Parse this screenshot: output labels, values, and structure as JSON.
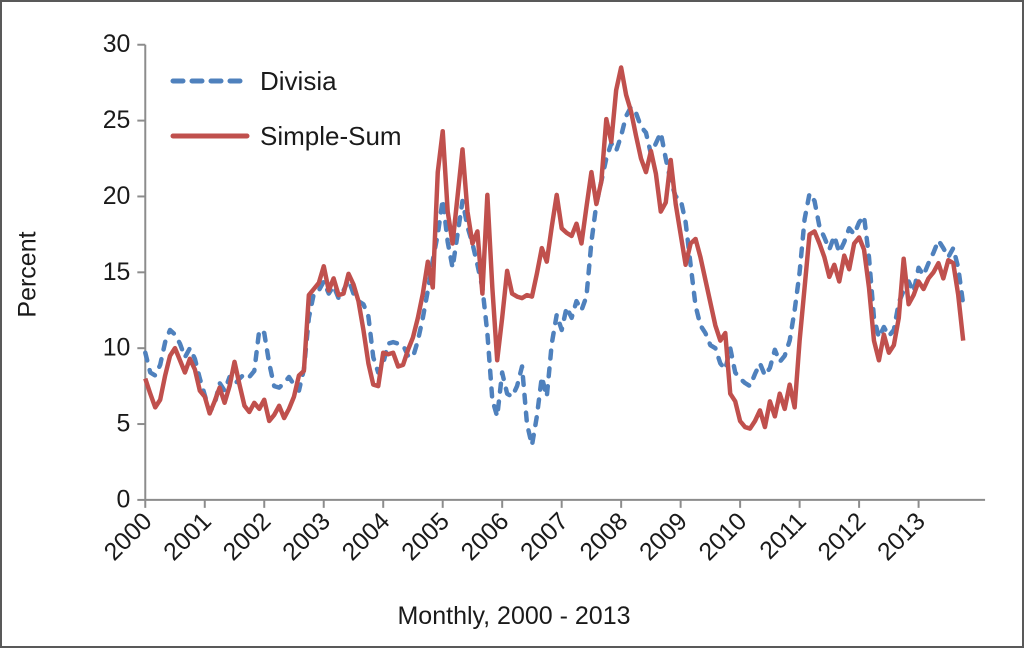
{
  "figure": {
    "background": "#FFFFFF",
    "border_color": "#595959"
  },
  "legend": {
    "position": "top-left-inside",
    "items": [
      {
        "label": "Divisia",
        "color": "#4F81BD",
        "line_style": "dashed"
      },
      {
        "label": "Simple-Sum",
        "color": "#C0504D",
        "line_style": "solid"
      }
    ]
  },
  "chart_data": {
    "type": "line",
    "title": "",
    "xlabel": "Monthly, 2000 - 2013",
    "ylabel": "Percent",
    "x_frequency": "monthly",
    "x_start": "2000-01",
    "x_end": "2013-10",
    "x_tick_labels": [
      "2000",
      "2001",
      "2002",
      "2003",
      "2004",
      "2005",
      "2006",
      "2007",
      "2008",
      "2009",
      "2010",
      "2011",
      "2012",
      "2013"
    ],
    "y_ticks": [
      0,
      5,
      10,
      15,
      20,
      25,
      30
    ],
    "ylim": [
      0,
      30
    ],
    "grid": false,
    "legend_position": "top-left-inside",
    "axis_color": "#8C8C8C",
    "text_color": "#1A1A1A",
    "series": [
      {
        "name": "Divisia",
        "color": "#4F81BD",
        "line_style": "dashed",
        "values": [
          9.7,
          8.4,
          8.2,
          8.9,
          10.4,
          11.2,
          10.9,
          10.3,
          9.4,
          10.0,
          9.3,
          8.0,
          6.9,
          5.8,
          6.3,
          7.7,
          7.2,
          8.1,
          7.6,
          8.0,
          8.3,
          8.1,
          8.5,
          11.2,
          11.0,
          9.0,
          7.5,
          7.4,
          7.7,
          8.1,
          7.6,
          7.2,
          8.6,
          12.0,
          13.6,
          13.8,
          14.4,
          13.6,
          14.1,
          13.3,
          13.8,
          14.5,
          13.6,
          13.1,
          12.9,
          12.1,
          9.4,
          8.4,
          9.0,
          10.3,
          10.4,
          10.3,
          10.2,
          9.5,
          9.4,
          10.5,
          12.0,
          13.8,
          15.8,
          17.5,
          19.8,
          17.0,
          15.3,
          17.5,
          19.7,
          18.0,
          16.9,
          15.5,
          14.0,
          11.0,
          6.6,
          5.5,
          8.4,
          7.0,
          6.8,
          7.5,
          8.8,
          5.0,
          3.6,
          5.5,
          8.1,
          6.8,
          10.3,
          12.2,
          11.2,
          12.7,
          12.0,
          13.1,
          12.5,
          13.4,
          17.0,
          19.5,
          21.0,
          22.5,
          23.5,
          23.0,
          24.0,
          25.3,
          25.9,
          25.5,
          24.6,
          24.2,
          22.8,
          23.5,
          24.2,
          22.5,
          21.0,
          20.0,
          19.8,
          18.3,
          15.5,
          12.8,
          11.5,
          11.0,
          10.2,
          10.0,
          9.0,
          8.6,
          10.0,
          8.4,
          8.0,
          7.7,
          7.5,
          8.3,
          9.0,
          8.2,
          8.7,
          9.9,
          9.1,
          9.5,
          10.5,
          12.5,
          15.0,
          18.5,
          20.2,
          19.7,
          18.0,
          17.3,
          16.5,
          17.4,
          16.3,
          17.0,
          17.9,
          17.5,
          18.3,
          18.7,
          16.0,
          12.0,
          10.7,
          11.4,
          10.8,
          11.2,
          13.0,
          13.8,
          14.4,
          13.7,
          15.3,
          14.8,
          15.6,
          16.3,
          17.1,
          16.6,
          16.0,
          16.6,
          15.3,
          12.9
        ]
      },
      {
        "name": "Simple-Sum",
        "color": "#C0504D",
        "line_style": "solid",
        "values": [
          8.0,
          7.0,
          6.1,
          6.6,
          8.2,
          9.5,
          10.0,
          9.2,
          8.4,
          9.3,
          8.6,
          7.2,
          6.8,
          5.7,
          6.5,
          7.4,
          6.4,
          7.5,
          9.1,
          7.6,
          6.2,
          5.8,
          6.4,
          6.0,
          6.6,
          5.2,
          5.6,
          6.2,
          5.4,
          6.0,
          6.8,
          8.2,
          8.5,
          13.5,
          13.9,
          14.3,
          15.4,
          13.8,
          14.6,
          13.5,
          13.6,
          14.9,
          14.2,
          13.1,
          11.2,
          9.0,
          7.6,
          7.5,
          9.7,
          9.6,
          9.7,
          8.8,
          8.9,
          9.9,
          10.7,
          12.0,
          13.6,
          15.7,
          14.0,
          21.6,
          24.3,
          19.0,
          16.9,
          20.0,
          23.1,
          19.0,
          16.9,
          17.7,
          13.6,
          20.1,
          14.0,
          9.2,
          12.0,
          15.1,
          13.6,
          13.4,
          13.3,
          13.5,
          13.4,
          14.9,
          16.6,
          15.7,
          18.0,
          20.1,
          17.9,
          17.6,
          17.4,
          18.2,
          16.9,
          19.3,
          21.6,
          19.5,
          21.0,
          25.1,
          23.6,
          27.0,
          28.5,
          26.7,
          25.6,
          24.0,
          22.5,
          21.6,
          23.0,
          21.5,
          19.0,
          19.6,
          22.4,
          19.5,
          17.5,
          15.5,
          16.9,
          17.2,
          16.0,
          14.5,
          13.0,
          11.5,
          10.5,
          11.0,
          7.0,
          6.5,
          5.2,
          4.8,
          4.7,
          5.2,
          5.9,
          4.8,
          6.5,
          5.5,
          7.0,
          6.0,
          7.6,
          6.1,
          10.5,
          14.0,
          17.5,
          17.7,
          16.9,
          16.0,
          14.7,
          15.5,
          14.4,
          16.1,
          15.2,
          16.9,
          17.3,
          16.5,
          14.0,
          10.5,
          9.2,
          10.9,
          9.7,
          10.2,
          12.0,
          15.9,
          12.9,
          13.5,
          14.4,
          13.9,
          14.6,
          15.0,
          15.6,
          14.6,
          15.8,
          15.6,
          13.5,
          10.5
        ]
      }
    ]
  }
}
